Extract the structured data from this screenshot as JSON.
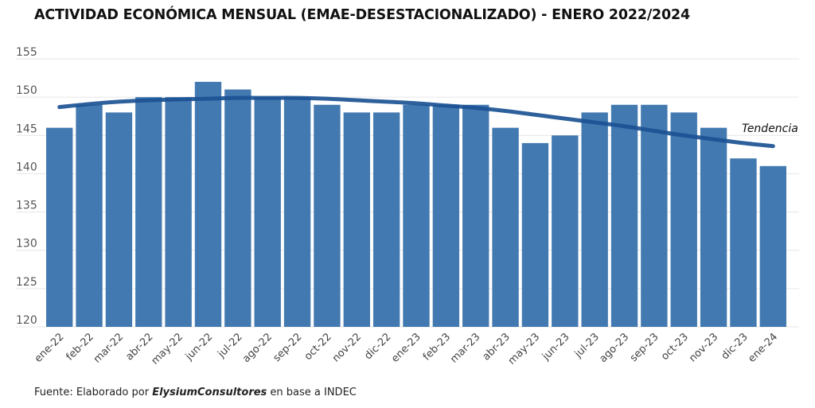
{
  "chart_data": {
    "type": "bar",
    "title": "ACTIVIDAD ECONÓMICA MENSUAL (EMAE-DESESTACIONALIZADO) - ENERO 2022/2024",
    "xlabel": "",
    "ylabel": "",
    "ylim": [
      120,
      155
    ],
    "yticks": [
      120,
      125,
      130,
      135,
      140,
      145,
      150,
      155
    ],
    "grid": true,
    "categories": [
      "ene-22",
      "feb-22",
      "mar-22",
      "abr-22",
      "may-22",
      "jun-22",
      "jul-22",
      "ago-22",
      "sep-22",
      "oct-22",
      "nov-22",
      "dic-22",
      "ene-23",
      "feb-23",
      "mar-23",
      "abr-23",
      "may-23",
      "jun-23",
      "jul-23",
      "ago-23",
      "sep-23",
      "oct-23",
      "nov-23",
      "dic-23",
      "ene-24"
    ],
    "series": [
      {
        "name": "EMAE desestacionalizado",
        "type": "bar",
        "color": "#4279b0",
        "values": [
          146,
          149,
          148,
          150,
          150,
          152,
          151,
          150,
          150,
          149,
          148,
          148,
          149,
          149,
          149,
          146,
          144,
          145,
          148,
          149,
          149,
          148,
          146,
          142,
          141
        ]
      },
      {
        "name": "Tendencia",
        "type": "line",
        "color": "#1c5394",
        "values": [
          148.7,
          149.1,
          149.4,
          149.6,
          149.7,
          149.8,
          149.9,
          149.9,
          149.9,
          149.8,
          149.6,
          149.4,
          149.2,
          148.9,
          148.6,
          148.2,
          147.7,
          147.2,
          146.7,
          146.2,
          145.6,
          145.0,
          144.5,
          144.0,
          143.6
        ]
      }
    ],
    "annotations": [
      {
        "text": "Tendencia",
        "series": "Tendencia"
      }
    ],
    "legend": "none"
  },
  "footer": {
    "prefix": "Fuente: Elaborado por ",
    "brand": "ElysiumConsultores",
    "suffix": " en base a INDEC"
  }
}
